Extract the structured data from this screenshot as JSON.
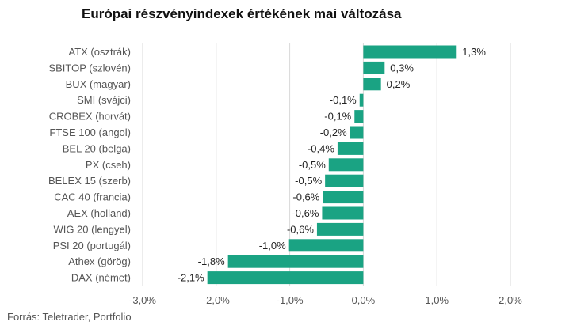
{
  "title": "Európai részvényindexek értékének mai változása",
  "source": "Forrás: Teletrader, Portfolio",
  "colors": {
    "bar": "#1aa383",
    "grid": "#d9d9d9"
  },
  "chart_data": {
    "type": "bar",
    "orientation": "horizontal",
    "title": "Európai részvényindexek értékének mai változása",
    "categories": [
      "ATX (osztrák)",
      "SBITOP (szlovén)",
      "BUX (magyar)",
      "SMI (svájci)",
      "CROBEX (horvát)",
      "FTSE 100 (angol)",
      "BEL 20 (belga)",
      "PX (cseh)",
      "BELEX 15 (szerb)",
      "CAC 40 (francia)",
      "AEX (holland)",
      "WIG 20 (lengyel)",
      "PSI 20 (portugál)",
      "Athex (görög)",
      "DAX (német)"
    ],
    "values": [
      1.27,
      0.29,
      0.24,
      -0.05,
      -0.12,
      -0.18,
      -0.35,
      -0.47,
      -0.52,
      -0.55,
      -0.56,
      -0.63,
      -1.01,
      -1.84,
      -2.12
    ],
    "value_labels": [
      "1,3%",
      "0,3%",
      "0,2%",
      "-0,1%",
      "-0,1%",
      "-0,2%",
      "-0,4%",
      "-0,5%",
      "-0,5%",
      "-0,6%",
      "-0,6%",
      "-0,6%",
      "-1,0%",
      "-1,8%",
      "-2,1%"
    ],
    "xlim": [
      -3.0,
      2.0
    ],
    "x_ticks": [
      -3.0,
      -2.0,
      -1.0,
      0.0,
      1.0,
      2.0
    ],
    "x_tick_labels": [
      "-3,0%",
      "-2,0%",
      "-1,0%",
      "0,0%",
      "1,0%",
      "2,0%"
    ],
    "grid": "vertical",
    "legend": "none"
  }
}
